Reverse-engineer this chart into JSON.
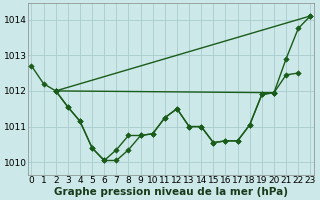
{
  "xlabel_bottom": "Graphe pression niveau de la mer (hPa)",
  "bg_color": "#cce8e8",
  "grid_color": "#aacccc",
  "line_color": "#1a5c1a",
  "marker_color": "#1a5c1a",
  "series": [
    [
      1012.7,
      1012.2,
      1012.0,
      1011.55,
      1011.15,
      1010.4,
      1010.05,
      1010.05,
      1010.35,
      1010.75,
      1010.8,
      1011.25,
      1011.5,
      1011.0,
      1011.0,
      1010.55,
      1010.6,
      1010.6,
      1011.05,
      1011.9,
      1011.95,
      1012.45,
      1012.5,
      null
    ],
    [
      null,
      null,
      1012.0,
      null,
      null,
      null,
      null,
      null,
      null,
      null,
      null,
      null,
      null,
      null,
      null,
      null,
      null,
      null,
      null,
      null,
      1011.95,
      1012.9,
      1013.75,
      1014.1
    ],
    [
      null,
      null,
      1012.0,
      null,
      null,
      null,
      null,
      null,
      null,
      null,
      null,
      null,
      null,
      null,
      null,
      null,
      null,
      null,
      null,
      null,
      null,
      null,
      null,
      1014.1
    ],
    [
      null,
      null,
      1012.0,
      1011.55,
      1011.15,
      1010.4,
      1010.05,
      1010.35,
      1010.75,
      1010.75,
      1010.8,
      1011.25,
      1011.5,
      1011.0,
      1011.0,
      1010.55,
      1010.6,
      1010.6,
      1011.05,
      1011.9,
      1011.95,
      null,
      null,
      null
    ]
  ],
  "xlim": [
    -0.3,
    23.3
  ],
  "ylim": [
    1009.65,
    1014.45
  ],
  "yticks": [
    1010,
    1011,
    1012,
    1013,
    1014
  ],
  "xticks": [
    0,
    1,
    2,
    3,
    4,
    5,
    6,
    7,
    8,
    9,
    10,
    11,
    12,
    13,
    14,
    15,
    16,
    17,
    18,
    19,
    20,
    21,
    22,
    23
  ],
  "xtick_labels": [
    "0",
    "1",
    "2",
    "3",
    "4",
    "5",
    "6",
    "7",
    "8",
    "9",
    "10",
    "11",
    "12",
    "13",
    "14",
    "15",
    "16",
    "17",
    "18",
    "19",
    "20",
    "21",
    "22",
    "23"
  ],
  "fontsize_xlabel": 7.5,
  "fontsize_tick": 6.5,
  "marker_size": 2.8,
  "line_width": 1.0
}
